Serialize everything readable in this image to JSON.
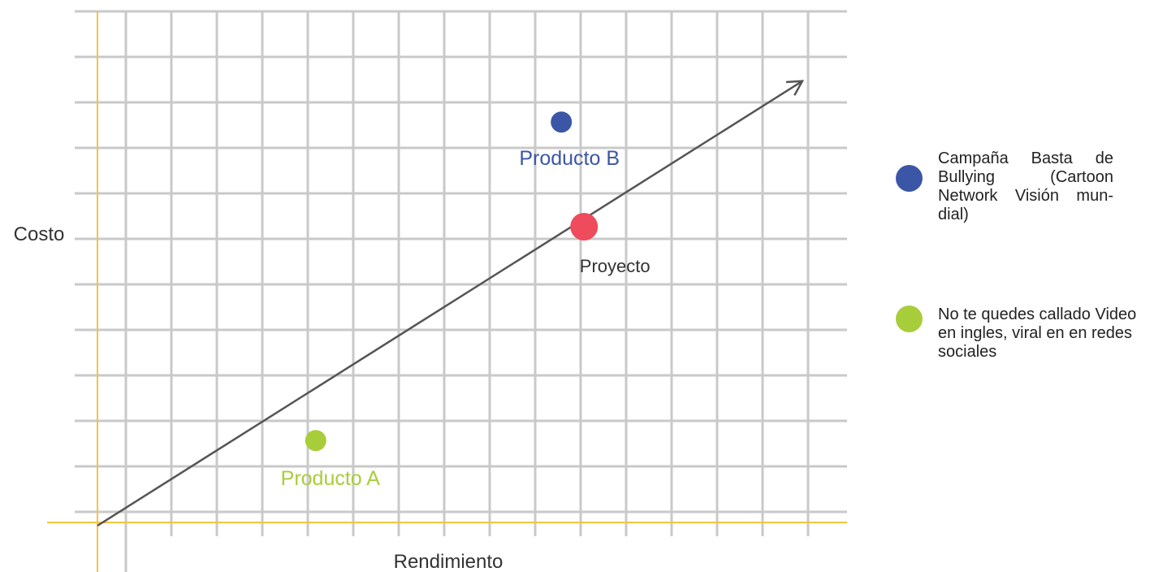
{
  "chart_data": {
    "type": "scatter",
    "xlabel": "Rendimiento",
    "ylabel": "Costo",
    "xlim": [
      0,
      16
    ],
    "ylim": [
      0,
      11
    ],
    "grid": true,
    "trend_arrow": {
      "from": [
        0,
        0
      ],
      "to": [
        15.5,
        9.7
      ]
    },
    "points": [
      {
        "label": "Producto A",
        "x": 4.8,
        "y": 1.8,
        "color": "#a8cd3a"
      },
      {
        "label": "Producto B",
        "x": 10.2,
        "y": 8.8,
        "color": "#3b56a6"
      },
      {
        "label": "Proyecto",
        "x": 10.7,
        "y": 6.5,
        "color": "#ee4b5c"
      }
    ],
    "legend": [
      {
        "color": "#3b56a6",
        "text": "Campaña Basta de Bullying (Cartoon Network Visión mun-dial)"
      },
      {
        "color": "#a8cd3a",
        "text": "No te quedes callado Video en ingles, viral en en redes sociales"
      }
    ],
    "colors": {
      "axis": "#f6c343",
      "grid": "#c9c9c9",
      "arrow": "#555555",
      "label_text": "#333333",
      "producto_b_text": "#3b56a6",
      "producto_a_text": "#a8cd3a"
    }
  }
}
